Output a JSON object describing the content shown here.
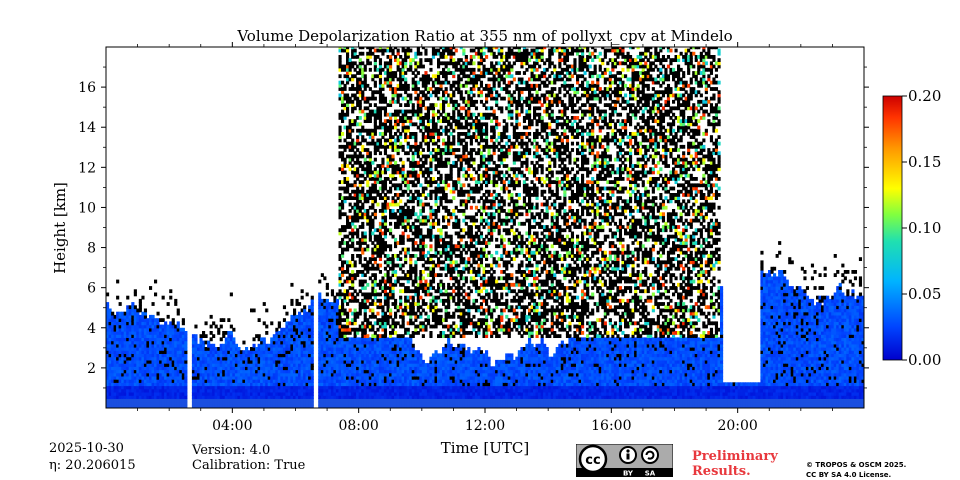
{
  "chart_data": {
    "type": "heatmap",
    "title": "Volume Depolarization Ratio at 355 nm of pollyxt_cpv at Mindelo",
    "xlabel": "Time [UTC]",
    "ylabel": "Height [km]",
    "xlim": [
      0,
      24
    ],
    "ylim": [
      0,
      18
    ],
    "x_ticks": [
      4,
      8,
      12,
      16,
      20
    ],
    "x_tick_labels": [
      "04:00",
      "08:00",
      "12:00",
      "16:00",
      "20:00"
    ],
    "y_ticks": [
      2,
      4,
      6,
      8,
      10,
      12,
      14,
      16
    ],
    "y_tick_labels": [
      "2",
      "4",
      "6",
      "8",
      "10",
      "12",
      "14",
      "16"
    ],
    "colorbar": {
      "range": [
        0.0,
        0.2
      ],
      "ticks": [
        0.0,
        0.05,
        0.1,
        0.15,
        0.2
      ],
      "tick_labels": [
        "0.00",
        "0.05",
        "0.10",
        "0.15",
        "0.20"
      ],
      "colormap": "jet"
    },
    "features": {
      "boundary_layer_top_km": 1.0,
      "noisy_period_utc": [
        7.3,
        19.4
      ],
      "data_gaps_utc": [
        [
          2.5,
          2.7
        ],
        [
          6.5,
          6.7
        ]
      ],
      "clear_sky_gap_utc": [
        19.5,
        20.7
      ],
      "aerosol_layer_top_km_typical": 5.0
    }
  },
  "info": {
    "date": "2025-10-30",
    "eta": "η: 20.206015",
    "version": "Version: 4.0",
    "calibration": "Calibration: True"
  },
  "footer": {
    "preliminary": "Preliminary",
    "results": "Results.",
    "copyright_line1": "© TROPOS & OSCM 2025.",
    "copyright_line2": "CC BY SA 4.0 License.",
    "cc_logo": "cc-by-sa-badge"
  }
}
